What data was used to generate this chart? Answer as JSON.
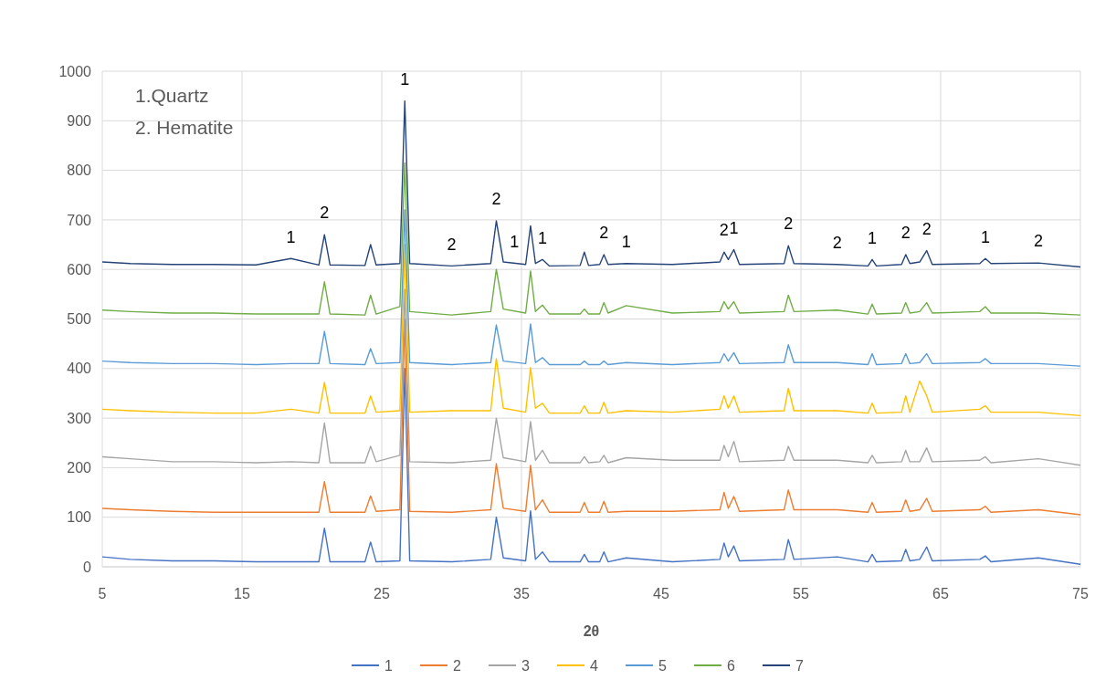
{
  "chart_data": {
    "type": "line",
    "xlabel": "2θ",
    "xlim": [
      5,
      75
    ],
    "xticks": [
      5,
      15,
      25,
      35,
      45,
      55,
      65,
      75
    ],
    "ylim": [
      0,
      1000
    ],
    "yticks": [
      0,
      100,
      200,
      300,
      400,
      500,
      600,
      700,
      800,
      900,
      1000
    ],
    "grid": true,
    "legend": "bottom",
    "marker": "none",
    "line_style": "solid",
    "x": [
      5,
      7,
      10,
      13,
      16,
      18.5,
      20.5,
      20.9,
      21.3,
      23.8,
      24.2,
      24.6,
      26.3,
      26.65,
      27.0,
      30,
      32.8,
      33.2,
      33.7,
      35.3,
      35.65,
      36.0,
      36.5,
      37,
      39.2,
      39.5,
      39.8,
      40.6,
      40.9,
      41.2,
      42.5,
      45.8,
      49.2,
      49.5,
      49.8,
      50.2,
      50.6,
      53.8,
      54.1,
      54.5,
      57.6,
      59.8,
      60.1,
      60.4,
      62.2,
      62.5,
      62.8,
      63.5,
      64.0,
      64.4,
      67.8,
      68.2,
      68.6,
      72.0,
      75
    ],
    "series": [
      {
        "name": "1",
        "color": "#4472c4",
        "values": [
          20,
          15,
          12,
          12,
          10,
          10,
          10,
          78,
          10,
          10,
          50,
          10,
          12,
          400,
          12,
          10,
          15,
          100,
          18,
          12,
          113,
          15,
          30,
          10,
          10,
          25,
          10,
          10,
          30,
          10,
          18,
          10,
          15,
          48,
          20,
          42,
          12,
          15,
          55,
          15,
          20,
          10,
          25,
          10,
          12,
          35,
          12,
          15,
          40,
          12,
          15,
          22,
          10,
          18,
          5
        ]
      },
      {
        "name": "2",
        "color": "#ed7d31",
        "values": [
          118,
          115,
          112,
          110,
          110,
          110,
          110,
          172,
          110,
          110,
          143,
          112,
          115,
          500,
          112,
          110,
          115,
          208,
          118,
          112,
          205,
          115,
          135,
          110,
          110,
          130,
          110,
          110,
          132,
          110,
          112,
          112,
          115,
          150,
          118,
          142,
          112,
          115,
          155,
          115,
          115,
          110,
          130,
          110,
          112,
          135,
          112,
          115,
          138,
          112,
          115,
          122,
          110,
          115,
          105
        ]
      },
      {
        "name": "3",
        "color": "#a5a5a5",
        "values": [
          222,
          218,
          212,
          212,
          210,
          212,
          210,
          290,
          210,
          210,
          243,
          212,
          225,
          560,
          212,
          210,
          215,
          300,
          220,
          212,
          293,
          215,
          235,
          210,
          210,
          222,
          210,
          212,
          225,
          210,
          220,
          215,
          215,
          245,
          222,
          253,
          212,
          215,
          243,
          215,
          215,
          210,
          225,
          210,
          212,
          235,
          212,
          212,
          240,
          212,
          215,
          222,
          210,
          218,
          205
        ]
      },
      {
        "name": "4",
        "color": "#ffc000",
        "values": [
          318,
          315,
          312,
          310,
          310,
          318,
          310,
          372,
          310,
          310,
          345,
          312,
          315,
          650,
          312,
          315,
          315,
          420,
          320,
          312,
          402,
          320,
          330,
          310,
          310,
          325,
          310,
          310,
          332,
          310,
          315,
          312,
          318,
          345,
          320,
          345,
          312,
          315,
          360,
          315,
          315,
          310,
          330,
          310,
          312,
          345,
          312,
          375,
          345,
          312,
          318,
          325,
          312,
          312,
          305
        ]
      },
      {
        "name": "5",
        "color": "#5b9bd5",
        "values": [
          415,
          412,
          410,
          410,
          408,
          410,
          410,
          475,
          410,
          408,
          440,
          410,
          412,
          720,
          412,
          408,
          412,
          488,
          415,
          410,
          490,
          412,
          422,
          408,
          408,
          415,
          408,
          408,
          415,
          408,
          412,
          408,
          412,
          430,
          415,
          432,
          410,
          412,
          448,
          412,
          412,
          408,
          430,
          408,
          410,
          430,
          410,
          412,
          430,
          410,
          412,
          420,
          410,
          410,
          405
        ]
      },
      {
        "name": "6",
        "color": "#70ad47",
        "values": [
          518,
          515,
          512,
          512,
          510,
          510,
          510,
          575,
          510,
          508,
          548,
          510,
          525,
          815,
          515,
          508,
          515,
          600,
          520,
          512,
          597,
          515,
          528,
          510,
          510,
          520,
          510,
          510,
          533,
          512,
          527,
          512,
          515,
          535,
          520,
          535,
          512,
          515,
          548,
          515,
          518,
          510,
          530,
          510,
          512,
          533,
          512,
          515,
          533,
          512,
          515,
          525,
          512,
          512,
          508
        ]
      },
      {
        "name": "7",
        "color": "#264478",
        "values": [
          615,
          612,
          610,
          610,
          609,
          622,
          609,
          670,
          609,
          608,
          650,
          609,
          612,
          940,
          612,
          607,
          612,
          698,
          615,
          610,
          688,
          612,
          620,
          607,
          608,
          635,
          608,
          610,
          630,
          610,
          612,
          610,
          615,
          635,
          620,
          640,
          610,
          612,
          648,
          612,
          610,
          607,
          620,
          607,
          610,
          630,
          612,
          615,
          638,
          610,
          612,
          622,
          612,
          613,
          605
        ]
      }
    ],
    "annotations": [
      "1.Quartz",
      "2. Hematite",
      {
        "text": "1",
        "x": 18.5,
        "y": 622
      },
      {
        "text": "2",
        "x": 20.9,
        "y": 670
      },
      {
        "text": "1",
        "x": 26.65,
        "y": 940
      },
      {
        "text": "2",
        "x": 30,
        "y": 607
      },
      {
        "text": "2",
        "x": 33.2,
        "y": 698
      },
      {
        "text": "1",
        "x": 34.5,
        "y": 612
      },
      {
        "text": "1",
        "x": 36.5,
        "y": 620
      },
      {
        "text": "2",
        "x": 40.9,
        "y": 630
      },
      {
        "text": "1",
        "x": 42.5,
        "y": 612
      },
      {
        "text": "2",
        "x": 49.5,
        "y": 635
      },
      {
        "text": "1",
        "x": 50.2,
        "y": 640
      },
      {
        "text": "2",
        "x": 54.1,
        "y": 648
      },
      {
        "text": "2",
        "x": 57.6,
        "y": 610
      },
      {
        "text": "1",
        "x": 60.1,
        "y": 620
      },
      {
        "text": "2",
        "x": 62.5,
        "y": 630
      },
      {
        "text": "2",
        "x": 64.0,
        "y": 638
      },
      {
        "text": "1",
        "x": 68.2,
        "y": 622
      },
      {
        "text": "2",
        "x": 72.0,
        "y": 613
      }
    ]
  }
}
